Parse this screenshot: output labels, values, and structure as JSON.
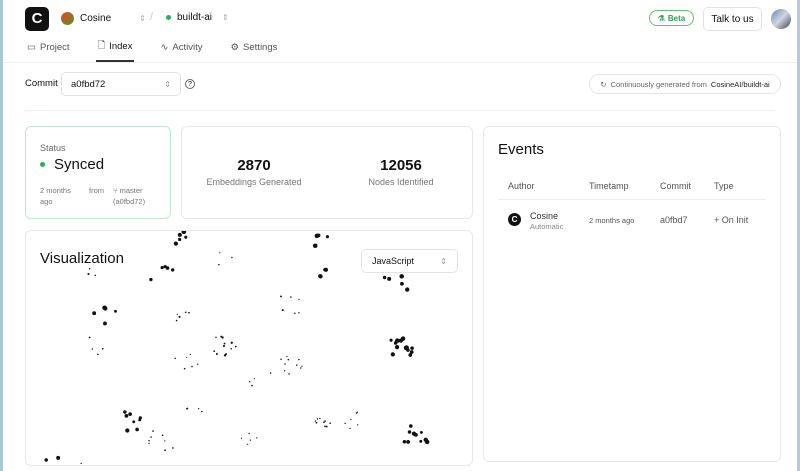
{
  "header": {
    "org": "Cosine",
    "repo": "buildt-ai",
    "beta": "Beta",
    "talk": "Talk to us",
    "logo": "C"
  },
  "tabs": [
    {
      "label": "Project",
      "icon": "project-icon"
    },
    {
      "label": "Index",
      "icon": "file-icon",
      "active": true
    },
    {
      "label": "Activity",
      "icon": "activity-icon"
    },
    {
      "label": "Settings",
      "icon": "gear-icon"
    }
  ],
  "commit": {
    "label": "Commit",
    "value": "a0fbd72"
  },
  "generated": {
    "text": "Continuously generated from",
    "repo": "CosineAI/buildt-ai"
  },
  "status": {
    "label": "Status",
    "value": "Synced",
    "time": "2 months ago",
    "from": "from",
    "branch": "master",
    "commit": "(a0fbd72)",
    "color": "#22b35b"
  },
  "stats": [
    {
      "value": "2870",
      "label": "Embeddings Generated"
    },
    {
      "value": "12056",
      "label": "Nodes Identified"
    }
  ],
  "visualization": {
    "title": "Visualization",
    "language": "JavaScript"
  },
  "events": {
    "title": "Events",
    "columns": [
      "Author",
      "Timetamp",
      "Commit",
      "Type"
    ],
    "rows": [
      {
        "author": "Cosine",
        "sub": "Automatic",
        "time": "2 months ago",
        "commit": "a0fbd7",
        "type": "On Init"
      }
    ]
  }
}
